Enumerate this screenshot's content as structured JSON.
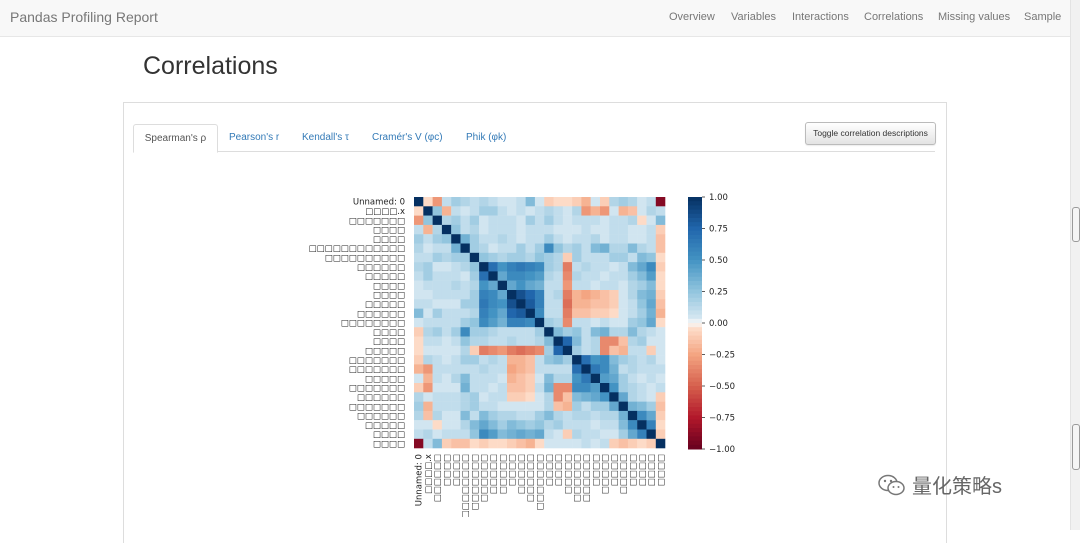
{
  "navbar": {
    "brand": "Pandas Profiling Report",
    "items": [
      "Overview",
      "Variables",
      "Interactions",
      "Correlations",
      "Missing values",
      "Sample"
    ]
  },
  "page": {
    "title": "Correlations"
  },
  "tabs": [
    {
      "label": "Spearman's ρ",
      "active": true
    },
    {
      "label": "Pearson's r",
      "active": false
    },
    {
      "label": "Kendall's τ",
      "active": false
    },
    {
      "label": "Cramér's V (φc)",
      "active": false
    },
    {
      "label": "Phik (φk)",
      "active": false
    }
  ],
  "toggle_button": "Toggle correlation descriptions",
  "watermark": {
    "text": "量化策略s",
    "icon": "wechat-icon"
  },
  "colors": {
    "positive": "#053061",
    "negative": "#67001f",
    "neutral": "#f7f7f7",
    "link": "#337ab7"
  },
  "chart_data": {
    "type": "heatmap",
    "title": "",
    "colormap": "RdBu",
    "vmin": -1,
    "vmax": 1,
    "colorbar_ticks": [
      "1.00",
      "0.75",
      "0.50",
      "0.25",
      "0.00",
      "−0.25",
      "−0.50",
      "−0.75",
      "−1.00"
    ],
    "row_labels": [
      "Unnamed: 0",
      "□□□□.x",
      "□□□□□□□",
      "□□□□",
      "□□□□",
      "□□□□□□□□□□□□",
      "□□□□□□□□□□",
      "□□□□□□",
      "□□□□□",
      "□□□□",
      "□□□□",
      "□□□□□",
      "□□□□□□",
      "□□□□□□□□",
      "□□□□",
      "□□□□",
      "□□□□□",
      "□□□□□□□",
      "□□□□□□□",
      "□□□□□",
      "□□□□□□□",
      "□□□□□□",
      "□□□□□□□",
      "□□□□□□",
      "□□□□□",
      "□□□□",
      "□□□□"
    ],
    "column_labels": [
      "Unnamed: 0",
      "□□□□.x",
      "□□□□□□",
      "□□□□",
      "□□□□",
      "□□□□□□□□",
      "□□□□□□□",
      "□□□□□□",
      "□□□□□",
      "□□□□□",
      "□□□□",
      "□□□□□",
      "□□□□□□",
      "□□□□□□□",
      "□□□□",
      "□□□□",
      "□□□□□",
      "□□□□□□",
      "□□□□□□",
      "□□□□",
      "□□□□□",
      "□□□□",
      "□□□□□",
      "□□□□",
      "□□□□",
      "□□□□",
      "□□□□"
    ],
    "values": [
      [
        1.0,
        -0.05,
        -0.3,
        0.1,
        0.2,
        0.15,
        0.1,
        0.15,
        0.1,
        0.05,
        0.05,
        0.1,
        0.3,
        0.05,
        -0.1,
        -0.05,
        -0.05,
        -0.1,
        -0.2,
        0.05,
        -0.1,
        0.15,
        0.2,
        0.15,
        0.05,
        0.1,
        -0.9
      ],
      [
        -0.05,
        1.0,
        0.25,
        -0.2,
        0.1,
        0.05,
        0.1,
        0.2,
        0.2,
        0.1,
        0.05,
        0.1,
        0.05,
        0.1,
        0.15,
        0.1,
        0.05,
        0.15,
        -0.3,
        -0.2,
        -0.3,
        0.05,
        -0.2,
        -0.15,
        0.05,
        0.15,
        0.1
      ],
      [
        -0.3,
        0.25,
        1.0,
        0.15,
        0.2,
        0.1,
        0.2,
        0.05,
        0.1,
        0.1,
        0.1,
        0.05,
        0.2,
        0.1,
        0.2,
        0.1,
        0.05,
        0.1,
        0.1,
        0.1,
        0.05,
        0.1,
        0.1,
        0.15,
        -0.05,
        0.05,
        0.3
      ],
      [
        0.1,
        -0.2,
        0.15,
        1.0,
        0.25,
        0.1,
        0.15,
        0.05,
        0.1,
        0.1,
        0.1,
        0.05,
        0.1,
        0.1,
        0.1,
        0.05,
        0.05,
        0.05,
        0.1,
        0.05,
        0.05,
        0.1,
        0.1,
        0.05,
        0.05,
        0.1,
        -0.1
      ],
      [
        0.2,
        0.1,
        0.2,
        0.25,
        1.0,
        0.35,
        0.2,
        0.1,
        0.1,
        0.15,
        0.1,
        0.05,
        0.1,
        0.1,
        0.2,
        0.1,
        0.05,
        0.1,
        0.1,
        0.15,
        0.05,
        0.1,
        0.1,
        0.05,
        0.05,
        0.1,
        -0.15
      ],
      [
        0.15,
        0.05,
        0.1,
        0.1,
        0.35,
        1.0,
        0.2,
        0.15,
        0.05,
        0.1,
        0.1,
        0.2,
        0.1,
        0.2,
        0.55,
        0.25,
        0.15,
        0.2,
        0.1,
        0.3,
        0.35,
        0.15,
        0.15,
        0.3,
        0.15,
        0.1,
        -0.15
      ],
      [
        0.1,
        0.1,
        0.2,
        0.15,
        0.2,
        0.2,
        1.0,
        0.25,
        0.2,
        0.15,
        0.2,
        0.2,
        0.15,
        0.25,
        0.2,
        0.15,
        -0.1,
        0.2,
        0.1,
        0.1,
        0.1,
        0.2,
        0.2,
        0.1,
        0.3,
        0.25,
        -0.05
      ],
      [
        0.15,
        0.2,
        0.05,
        0.05,
        0.1,
        0.15,
        0.25,
        1.0,
        0.7,
        0.5,
        0.6,
        0.65,
        0.6,
        0.55,
        0.2,
        0.15,
        -0.4,
        0.1,
        0.15,
        0.1,
        0.1,
        0.05,
        0.1,
        0.3,
        0.4,
        0.55,
        -0.1
      ],
      [
        0.1,
        0.2,
        0.1,
        0.1,
        0.1,
        0.05,
        0.2,
        0.7,
        1.0,
        0.4,
        0.55,
        0.55,
        0.5,
        0.45,
        0.15,
        0.1,
        -0.35,
        0.15,
        0.1,
        0.1,
        0.05,
        0.1,
        0.1,
        0.2,
        0.3,
        0.45,
        -0.05
      ],
      [
        0.05,
        0.1,
        0.1,
        0.1,
        0.15,
        0.1,
        0.15,
        0.5,
        0.4,
        1.0,
        0.4,
        0.5,
        0.4,
        0.35,
        0.1,
        0.1,
        -0.3,
        0.1,
        0.1,
        0.05,
        0.1,
        0.1,
        0.05,
        0.15,
        0.2,
        0.3,
        -0.05
      ],
      [
        0.05,
        0.05,
        0.1,
        0.1,
        0.1,
        0.1,
        0.2,
        0.6,
        0.55,
        0.4,
        1.0,
        0.85,
        0.75,
        0.6,
        0.1,
        0.15,
        -0.4,
        -0.2,
        -0.25,
        -0.2,
        -0.15,
        -0.1,
        0.05,
        0.15,
        0.3,
        0.35,
        -0.1
      ],
      [
        0.1,
        0.1,
        0.05,
        0.05,
        0.05,
        0.2,
        0.2,
        0.65,
        0.55,
        0.5,
        0.85,
        1.0,
        0.8,
        0.6,
        0.1,
        0.1,
        -0.45,
        -0.2,
        -0.2,
        -0.15,
        -0.15,
        -0.1,
        0.05,
        0.1,
        0.25,
        0.4,
        -0.15
      ],
      [
        0.3,
        0.05,
        0.2,
        0.1,
        0.1,
        0.1,
        0.15,
        0.6,
        0.5,
        0.4,
        0.75,
        0.8,
        1.0,
        0.55,
        0.1,
        0.1,
        -0.4,
        -0.15,
        -0.15,
        -0.1,
        -0.1,
        -0.05,
        0.05,
        0.1,
        0.2,
        0.35,
        -0.2
      ],
      [
        0.05,
        0.1,
        0.1,
        0.1,
        0.1,
        0.2,
        0.25,
        0.55,
        0.45,
        0.35,
        0.6,
        0.6,
        0.55,
        1.0,
        0.2,
        0.15,
        -0.35,
        0.1,
        0.1,
        0.05,
        0.1,
        0.05,
        0.05,
        0.2,
        0.25,
        0.4,
        -0.05
      ],
      [
        -0.1,
        0.15,
        0.2,
        0.1,
        0.2,
        0.55,
        0.2,
        0.2,
        0.15,
        0.1,
        0.1,
        0.1,
        0.1,
        0.2,
        1.0,
        0.3,
        0.2,
        0.25,
        0.1,
        0.3,
        0.35,
        0.15,
        0.15,
        0.3,
        0.15,
        0.1,
        0.05
      ],
      [
        -0.05,
        0.1,
        0.1,
        0.05,
        0.1,
        0.25,
        0.15,
        0.15,
        0.1,
        0.1,
        0.15,
        0.1,
        0.1,
        0.15,
        0.3,
        1.0,
        0.75,
        0.3,
        0.1,
        0.15,
        -0.35,
        -0.35,
        -0.15,
        0.15,
        0.2,
        0.05,
        0.05
      ],
      [
        -0.05,
        0.05,
        0.05,
        0.05,
        0.05,
        0.15,
        -0.1,
        -0.4,
        -0.35,
        -0.3,
        -0.4,
        -0.45,
        -0.4,
        -0.35,
        0.2,
        0.75,
        1.0,
        0.2,
        0.1,
        0.15,
        -0.35,
        -0.15,
        -0.2,
        0.1,
        0.1,
        -0.1,
        0.05
      ],
      [
        -0.1,
        0.15,
        0.1,
        0.05,
        0.1,
        0.2,
        0.2,
        0.1,
        0.15,
        0.1,
        -0.2,
        -0.2,
        -0.15,
        0.1,
        0.25,
        0.3,
        0.2,
        1.0,
        0.7,
        0.5,
        0.55,
        0.3,
        0.2,
        0.15,
        0.1,
        0.15,
        0.05
      ],
      [
        -0.2,
        -0.3,
        0.1,
        0.1,
        0.1,
        0.1,
        0.1,
        0.15,
        0.1,
        0.1,
        -0.25,
        -0.2,
        -0.15,
        0.1,
        0.1,
        0.1,
        0.1,
        0.7,
        1.0,
        0.65,
        0.55,
        0.35,
        0.1,
        0.15,
        0.1,
        0.1,
        0.1
      ],
      [
        0.05,
        -0.2,
        0.1,
        0.05,
        0.15,
        0.3,
        0.1,
        0.1,
        0.1,
        0.05,
        -0.2,
        -0.15,
        -0.1,
        0.05,
        0.3,
        0.15,
        0.15,
        0.5,
        0.65,
        1.0,
        0.45,
        0.4,
        0.2,
        0.1,
        0.05,
        0.1,
        0.05
      ],
      [
        -0.1,
        -0.3,
        0.05,
        0.05,
        0.05,
        0.35,
        0.1,
        0.1,
        0.05,
        0.1,
        -0.15,
        -0.15,
        -0.1,
        0.1,
        0.35,
        -0.35,
        -0.35,
        0.55,
        0.55,
        0.45,
        1.0,
        0.5,
        0.2,
        0.15,
        0.1,
        0.05,
        0.1
      ],
      [
        0.15,
        0.05,
        0.1,
        0.1,
        0.1,
        0.15,
        0.2,
        0.05,
        0.1,
        0.1,
        -0.1,
        -0.1,
        -0.05,
        0.05,
        0.15,
        -0.35,
        -0.15,
        0.3,
        0.35,
        0.4,
        0.5,
        1.0,
        0.4,
        0.15,
        0.1,
        0.05,
        -0.1
      ],
      [
        0.2,
        -0.2,
        0.1,
        0.1,
        0.1,
        0.15,
        0.2,
        0.1,
        0.1,
        0.05,
        0.05,
        0.05,
        0.05,
        0.05,
        0.15,
        -0.15,
        -0.2,
        0.2,
        0.1,
        0.2,
        0.2,
        0.4,
        1.0,
        0.35,
        0.3,
        0.2,
        -0.15
      ],
      [
        0.15,
        -0.15,
        0.15,
        0.05,
        0.05,
        0.3,
        0.1,
        0.3,
        0.2,
        0.15,
        0.15,
        0.1,
        0.1,
        0.2,
        0.3,
        0.15,
        0.1,
        0.15,
        0.15,
        0.1,
        0.15,
        0.15,
        0.35,
        1.0,
        0.55,
        0.4,
        -0.1
      ],
      [
        0.05,
        0.05,
        -0.05,
        0.05,
        0.05,
        0.15,
        0.3,
        0.4,
        0.3,
        0.2,
        0.3,
        0.25,
        0.2,
        0.25,
        0.15,
        0.2,
        0.1,
        0.1,
        0.1,
        0.05,
        0.1,
        0.1,
        0.3,
        0.55,
        1.0,
        0.6,
        -0.05
      ],
      [
        0.1,
        0.15,
        0.05,
        0.1,
        0.1,
        0.1,
        0.25,
        0.55,
        0.45,
        0.3,
        0.35,
        0.4,
        0.35,
        0.4,
        0.1,
        0.05,
        -0.1,
        0.15,
        0.1,
        0.1,
        0.05,
        0.05,
        0.2,
        0.4,
        0.6,
        1.0,
        -0.1
      ],
      [
        -0.9,
        0.1,
        0.3,
        -0.1,
        -0.15,
        -0.15,
        -0.05,
        -0.1,
        -0.05,
        -0.05,
        -0.1,
        -0.15,
        -0.2,
        -0.05,
        0.05,
        0.05,
        0.05,
        0.05,
        0.1,
        0.05,
        0.1,
        -0.1,
        -0.15,
        -0.1,
        -0.05,
        -0.1,
        1.0
      ]
    ]
  }
}
